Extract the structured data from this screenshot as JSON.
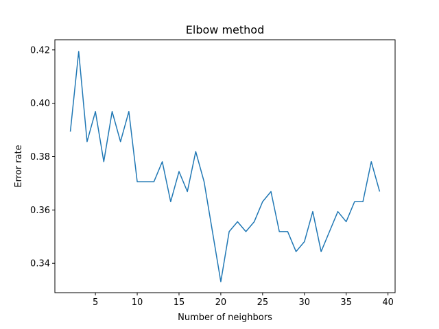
{
  "chart_data": {
    "type": "line",
    "title": "Elbow method",
    "xlabel": "Number of neighbors",
    "ylabel": "Error rate",
    "xlim": [
      0.15,
      40.85
    ],
    "ylim": [
      0.329,
      0.4238
    ],
    "xticks": [
      5,
      10,
      15,
      20,
      25,
      30,
      35,
      40
    ],
    "yticks": [
      0.34,
      0.36,
      0.38,
      0.4,
      0.42
    ],
    "ytick_labels": [
      "0.34",
      "0.36",
      "0.38",
      "0.40",
      "0.42"
    ],
    "grid": false,
    "series": [
      {
        "color": "#1f77b4",
        "x": [
          2,
          3,
          4,
          5,
          6,
          7,
          8,
          9,
          10,
          11,
          12,
          13,
          14,
          15,
          16,
          17,
          18,
          19,
          20,
          21,
          22,
          23,
          24,
          25,
          26,
          27,
          28,
          29,
          30,
          31,
          32,
          33,
          34,
          35,
          36,
          37,
          38,
          39
        ],
        "y": [
          0.3894,
          0.4194,
          0.3856,
          0.3969,
          0.3781,
          0.3969,
          0.3856,
          0.3969,
          0.3706,
          0.3706,
          0.3706,
          0.3781,
          0.3631,
          0.3744,
          0.3669,
          0.3819,
          0.3706,
          0.3519,
          0.3331,
          0.3519,
          0.3556,
          0.3519,
          0.3556,
          0.3631,
          0.3669,
          0.3519,
          0.3519,
          0.3444,
          0.3481,
          0.3594,
          0.3444,
          0.3519,
          0.3594,
          0.3556,
          0.3631,
          0.3631,
          0.3781,
          0.3669
        ]
      }
    ]
  }
}
